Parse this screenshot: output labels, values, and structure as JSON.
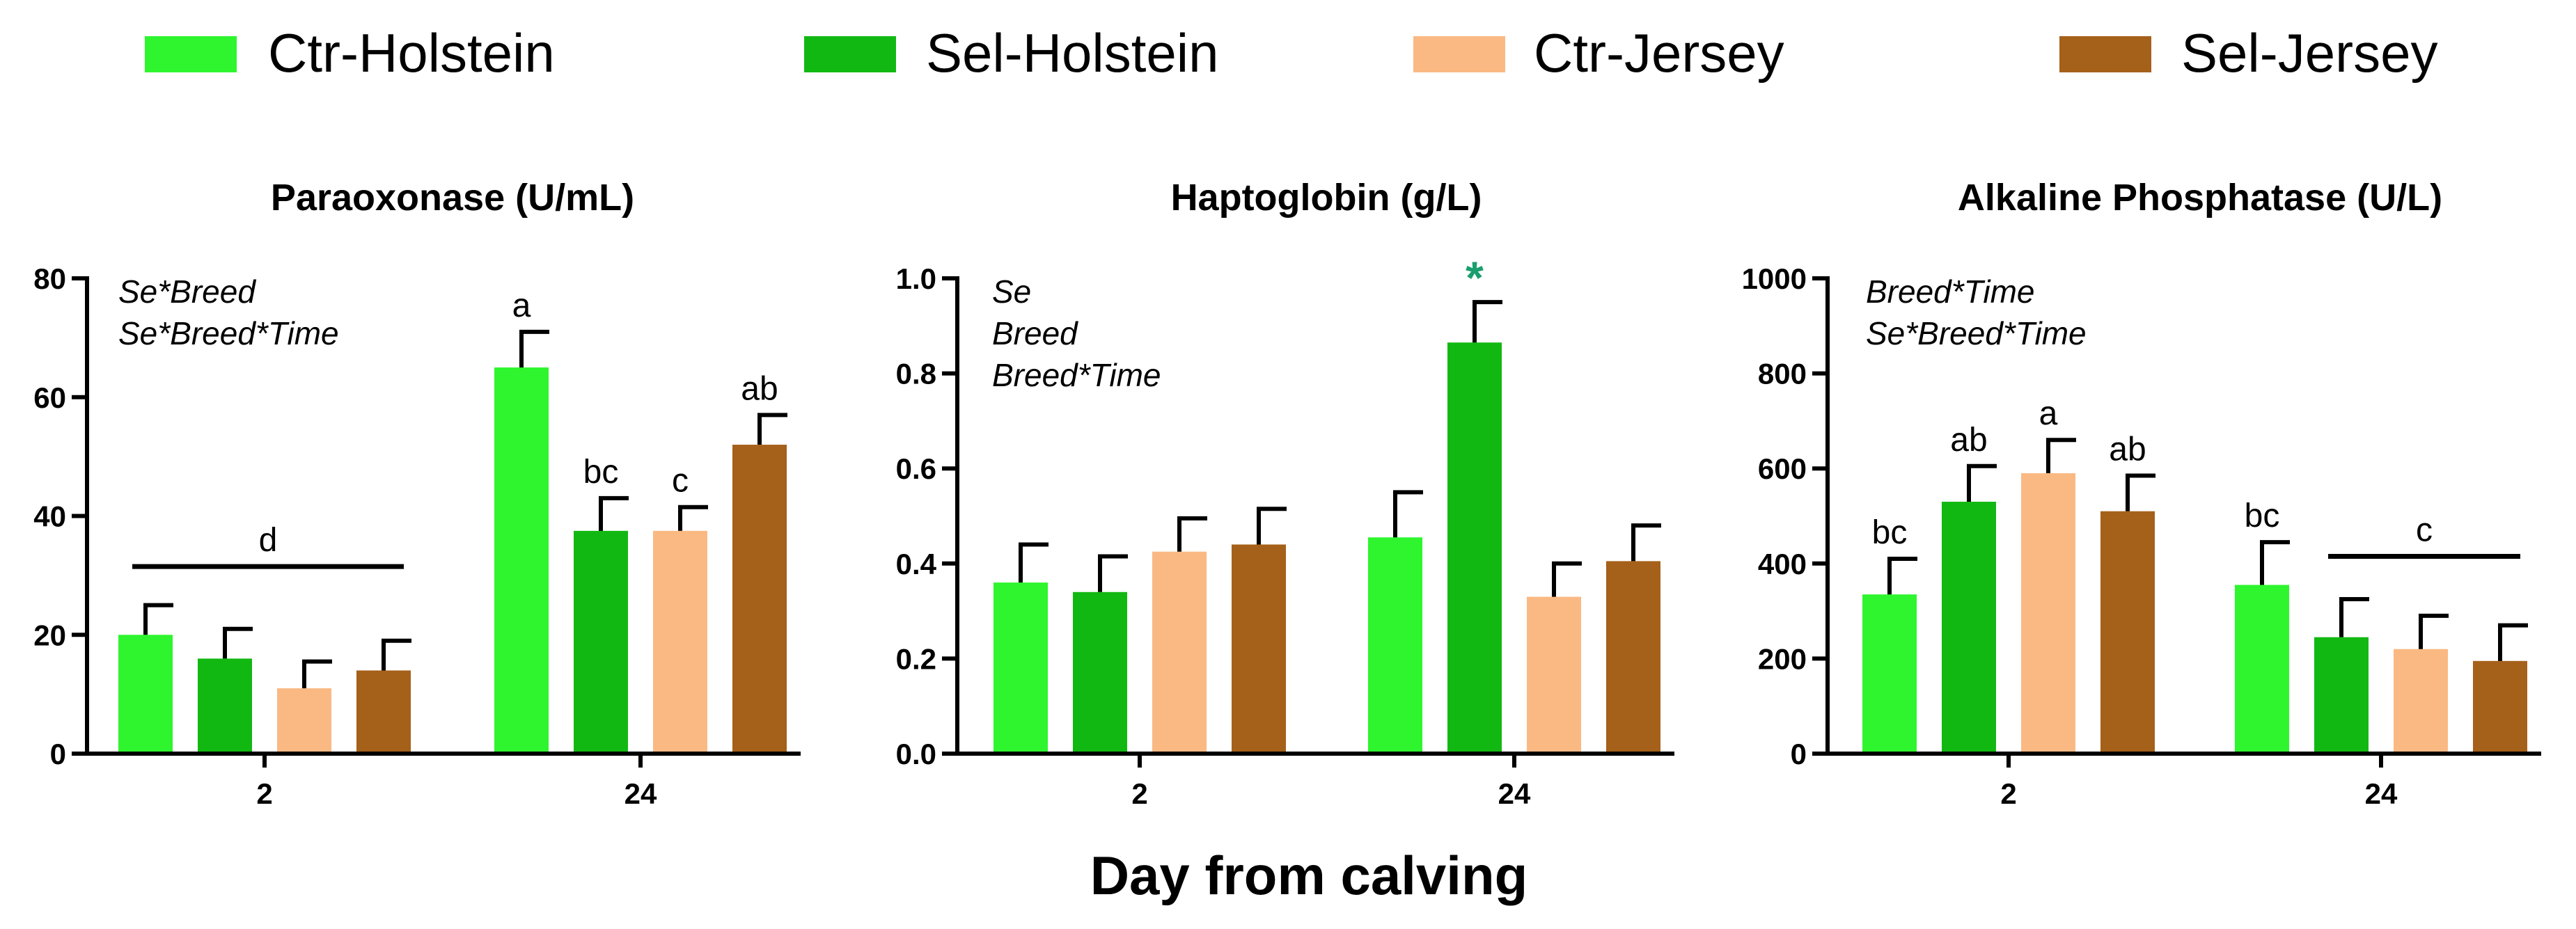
{
  "legend": [
    {
      "label": "Ctr-Holstein",
      "color": "#2EF52E"
    },
    {
      "label": "Sel-Holstein",
      "color": "#12B812"
    },
    {
      "label": "Ctr-Jersey",
      "color": "#FAB983"
    },
    {
      "label": "Sel-Jersey",
      "color": "#A5601A"
    }
  ],
  "xlabel": "Day from calving",
  "chart_data": [
    {
      "type": "bar",
      "title": "Paraoxonase (U/mL)",
      "categories": [
        "2",
        "24"
      ],
      "ylim": [
        0,
        80
      ],
      "yticks": [
        0,
        20,
        40,
        60,
        80
      ],
      "series": [
        {
          "name": "Ctr-Holstein",
          "values": [
            20,
            65
          ],
          "errors": [
            5,
            6
          ]
        },
        {
          "name": "Sel-Holstein",
          "values": [
            16,
            37.5
          ],
          "errors": [
            5,
            5.5
          ]
        },
        {
          "name": "Ctr-Jersey",
          "values": [
            11,
            37.5
          ],
          "errors": [
            4.5,
            4
          ]
        },
        {
          "name": "Sel-Jersey",
          "values": [
            14,
            52
          ],
          "errors": [
            5,
            5
          ]
        }
      ],
      "effects": [
        "Se*Breed",
        "Se*Breed*Time"
      ],
      "bar_letters": [
        {
          "category": 1,
          "series": 0,
          "text": "a"
        },
        {
          "category": 1,
          "series": 1,
          "text": "bc"
        },
        {
          "category": 1,
          "series": 2,
          "text": "c"
        },
        {
          "category": 1,
          "series": 3,
          "text": "ab"
        }
      ],
      "group_lines": [
        {
          "category": 0,
          "from": 0,
          "to": 3,
          "y": 31.5,
          "label": "d"
        }
      ]
    },
    {
      "type": "bar",
      "title": "Haptoglobin (g/L)",
      "categories": [
        "2",
        "24"
      ],
      "ylim": [
        0,
        1.0
      ],
      "yticks": [
        "0.0",
        "0.2",
        "0.4",
        "0.6",
        "0.8",
        "1.0"
      ],
      "series": [
        {
          "name": "Ctr-Holstein",
          "values": [
            0.36,
            0.455
          ],
          "errors": [
            0.08,
            0.095
          ]
        },
        {
          "name": "Sel-Holstein",
          "values": [
            0.34,
            0.865
          ],
          "errors": [
            0.075,
            0.085
          ]
        },
        {
          "name": "Ctr-Jersey",
          "values": [
            0.425,
            0.33
          ],
          "errors": [
            0.07,
            0.07
          ]
        },
        {
          "name": "Sel-Jersey",
          "values": [
            0.44,
            0.405
          ],
          "errors": [
            0.075,
            0.075
          ]
        }
      ],
      "effects": [
        "Se",
        "Breed",
        "Breed*Time"
      ],
      "bar_letters": [
        {
          "category": 1,
          "series": 1,
          "text": "*",
          "color": "#1A9E6E"
        }
      ],
      "group_lines": []
    },
    {
      "type": "bar",
      "title": "Alkaline Phosphatase (U/L)",
      "categories": [
        "2",
        "24"
      ],
      "ylim": [
        0,
        1000
      ],
      "yticks": [
        0,
        200,
        400,
        600,
        800,
        1000
      ],
      "series": [
        {
          "name": "Ctr-Holstein",
          "values": [
            335,
            355
          ],
          "errors": [
            75,
            90
          ]
        },
        {
          "name": "Sel-Holstein",
          "values": [
            530,
            245
          ],
          "errors": [
            75,
            80
          ]
        },
        {
          "name": "Ctr-Jersey",
          "values": [
            590,
            220
          ],
          "errors": [
            70,
            70
          ]
        },
        {
          "name": "Sel-Jersey",
          "values": [
            510,
            195
          ],
          "errors": [
            75,
            75
          ]
        }
      ],
      "effects": [
        "Breed*Time",
        "Se*Breed*Time"
      ],
      "bar_letters": [
        {
          "category": 0,
          "series": 0,
          "text": "bc"
        },
        {
          "category": 0,
          "series": 1,
          "text": "ab"
        },
        {
          "category": 0,
          "series": 2,
          "text": "a"
        },
        {
          "category": 0,
          "series": 3,
          "text": "ab"
        },
        {
          "category": 1,
          "series": 0,
          "text": "bc"
        }
      ],
      "group_lines": [
        {
          "category": 1,
          "from": 1,
          "to": 3,
          "y": 415,
          "label": "c"
        }
      ]
    }
  ]
}
